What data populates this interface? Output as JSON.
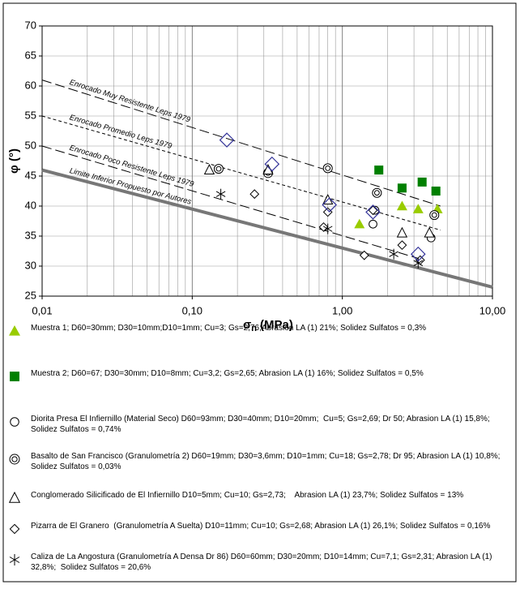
{
  "chart_data": {
    "type": "scatter",
    "xlabel": {
      "symbol": "σ",
      "subscript": "n",
      "unit": "(MPa)"
    },
    "ylabel": "φ (°)",
    "xscale": "log",
    "xlim": [
      0.01,
      10
    ],
    "ylim": [
      25,
      70
    ],
    "xticks": [
      {
        "value": 0.01,
        "label": "0,01"
      },
      {
        "value": 0.1,
        "label": "0,10"
      },
      {
        "value": 1,
        "label": "1,00"
      },
      {
        "value": 10,
        "label": "10,00"
      }
    ],
    "xminorticks": [
      0.02,
      0.03,
      0.04,
      0.05,
      0.06,
      0.07,
      0.08,
      0.09,
      0.2,
      0.3,
      0.4,
      0.5,
      0.6,
      0.7,
      0.8,
      0.9,
      2,
      3,
      4,
      5,
      6,
      7,
      8,
      9
    ],
    "yticks": [
      25,
      30,
      35,
      40,
      45,
      50,
      55,
      60,
      65,
      70
    ],
    "grid": true,
    "reference_lines": [
      {
        "label": "Enrocado Muy Resistente Leps 1979",
        "x": [
          0.01,
          4.5
        ],
        "y": [
          61,
          40
        ],
        "dash": "12 5",
        "color": "#000000",
        "width": 1
      },
      {
        "label": "Enrocado Promedio Leps 1979",
        "x": [
          0.01,
          4.5
        ],
        "y": [
          55,
          36
        ],
        "dash": "4 3",
        "color": "#000000",
        "width": 1
      },
      {
        "label": "Enrocado Poco Resistente Leps 1979",
        "x": [
          0.01,
          3.5
        ],
        "y": [
          50,
          31
        ],
        "dash": "12 5",
        "color": "#000000",
        "width": 1
      },
      {
        "label": "Limite Inferior Propuesto por Autores",
        "x": [
          0.01,
          10
        ],
        "y": [
          46,
          26.5
        ],
        "dash": "",
        "color": "#777777",
        "width": 4
      }
    ],
    "series": [
      {
        "name": "Muestra 1; D60=30mm; D30=10mm;D10=1mm; Cu=3; Gs=2,76;Abrasion LA (1) 21%; Solidez Sulfatos = 0,3%",
        "marker": "triangle-filled",
        "color": "#99cc00",
        "x": [
          1.3,
          2.5,
          3.2,
          4.3
        ],
        "values": [
          37,
          40,
          39.5,
          39.5
        ]
      },
      {
        "name": "Muestra 2; D60=67; D30=30mm; D10=8mm; Cu=3,2; Gs=2,65; Abrasion LA (1) 16%; Solidez Sulfatos = 0,5%",
        "marker": "square-filled",
        "color": "#008000",
        "x": [
          1.75,
          2.5,
          3.4,
          4.2
        ],
        "values": [
          46,
          43,
          44,
          42.5
        ]
      },
      {
        "name": "Diorita Presa El Infiernillo (Material Seco) D60=93mm; D30=40mm; D10=20mm;  Cu=5; Gs=2,69; Dr 50; Abrasion LA (1) 15,8%; Solidez Sulfatos = 0,74%",
        "marker": "circle",
        "color": "#000000",
        "x": [
          1.6,
          1.65,
          3.9
        ],
        "values": [
          37,
          39.3,
          34.7
        ]
      },
      {
        "name": "Basalto de San Francisco (Granulometría 2) D60=19mm; D30=3,6mm; D10=1mm; Cu=18; Gs=2,78; Dr 95; Abrasion LA (1) 10,8%; Solidez Sulfatos = 0,03%",
        "marker": "double-circle",
        "color": "#000000",
        "x": [
          0.15,
          0.32,
          0.8,
          1.7,
          4.1
        ],
        "values": [
          46.2,
          45.5,
          46.3,
          42.2,
          38.5
        ]
      },
      {
        "name": "Conglomerado Silicificado de El Infiernillo D10=5mm; Cu=10; Gs=2,73;    Abrasion LA (1) 23,7%; Solidez Sulfatos = 13%",
        "marker": "triangle",
        "color": "#000000",
        "x": [
          0.13,
          0.32,
          0.8,
          2.5,
          3.8
        ],
        "values": [
          46,
          46,
          41,
          35.5,
          35.5
        ]
      },
      {
        "name": "Pizarra de El Granero  (Granulometría A Suelta) D10=11mm; Cu=10; Gs=2,68; Abrasion LA (1) 26,1%; Solidez Sulfatos = 0,16%",
        "marker": "diamond",
        "color": "#000000",
        "x": [
          0.26,
          0.75,
          0.8,
          1.4,
          1.6,
          2.5,
          3.3
        ],
        "values": [
          42,
          36.5,
          39,
          31.8,
          39.3,
          33.5,
          31
        ]
      },
      {
        "name": "Caliza de La Angostura (Granulometría A Densa Dr 86) D60=60mm; D30=20mm; D10=14mm; Cu=7,1; Gs=2,31; Abrasion LA (1) 32,8%;  Solidez Sulfatos = 20,6%",
        "marker": "asterisk",
        "color": "#000000",
        "x": [
          0.155,
          0.8,
          2.2,
          3.2
        ],
        "values": [
          42,
          36.2,
          32,
          30.5
        ]
      },
      {
        "marker": "diamond-large",
        "color": "#333399",
        "x": [
          0.17,
          0.34,
          0.82,
          1.6,
          3.2
        ],
        "values": [
          51,
          47,
          40.2,
          39,
          32
        ]
      }
    ]
  }
}
